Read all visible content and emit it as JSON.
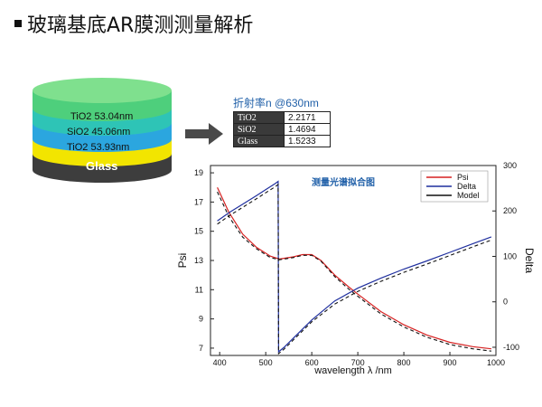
{
  "title": "玻璃基底AR膜测测量解析",
  "stack": {
    "layers": [
      {
        "label": "TiO2  53.04nm",
        "color": "#2ec4b6"
      },
      {
        "label": "SiO2  45.06nm",
        "color": "#2ba6df"
      },
      {
        "label": "TiO2  53.93nm",
        "color": "#f2e500"
      }
    ],
    "top_color": "#5fd37a",
    "substrate": {
      "label": "Glass",
      "color": "#3d3d3d"
    }
  },
  "nk": {
    "title": "折射率n @630nm",
    "rows": [
      {
        "material": "TiO2",
        "value": "2.2171"
      },
      {
        "material": "SiO2",
        "value": "1.4694"
      },
      {
        "material": "Glass",
        "value": "1.5233"
      }
    ]
  },
  "chart_data": {
    "type": "line",
    "title": "测量光谱拟合图",
    "xlabel": "wavelength λ /nm",
    "ylabel": "Psi",
    "y2label": "Delta",
    "xlim": [
      380,
      1000
    ],
    "ylim": [
      6.5,
      19.5
    ],
    "y2lim": [
      -118,
      300
    ],
    "xticks": [
      400,
      500,
      600,
      700,
      800,
      900,
      1000
    ],
    "yticks": [
      7,
      9,
      11,
      13,
      15,
      17,
      19
    ],
    "y2ticks": [
      -100,
      0,
      100,
      200,
      300
    ],
    "legend_position": "top-right",
    "series": [
      {
        "name": "Psi",
        "axis": "left",
        "color": "#d62020",
        "dash": false,
        "x": [
          395,
          420,
          450,
          480,
          510,
          530,
          560,
          580,
          600,
          620,
          650,
          680,
          700,
          750,
          800,
          850,
          900,
          950,
          990
        ],
        "y": [
          18.0,
          16.3,
          14.8,
          13.9,
          13.3,
          13.1,
          13.25,
          13.4,
          13.4,
          13.0,
          12.0,
          11.2,
          10.7,
          9.5,
          8.6,
          7.9,
          7.4,
          7.1,
          6.95
        ]
      },
      {
        "name": "Delta",
        "axis": "right",
        "color": "#1f2f9e",
        "dash": false,
        "x": [
          395,
          420,
          450,
          480,
          500,
          520,
          527,
          528,
          540,
          560,
          600,
          650,
          700,
          750,
          800,
          850,
          900,
          950,
          990
        ],
        "y": [
          178,
          196,
          215,
          234,
          247,
          260,
          265,
          -110,
          -100,
          -80,
          -40,
          2,
          30,
          52,
          72,
          90,
          109,
          128,
          143
        ]
      },
      {
        "name": "Model",
        "axis": "both",
        "color": "#111111",
        "dash": true,
        "x": [
          395,
          420,
          450,
          480,
          510,
          530,
          560,
          580,
          600,
          620,
          650,
          680,
          700,
          750,
          800,
          850,
          900,
          950,
          990
        ],
        "y": [
          17.7,
          16.0,
          14.6,
          13.8,
          13.2,
          13.05,
          13.2,
          13.35,
          13.35,
          12.95,
          11.9,
          11.05,
          10.55,
          9.35,
          8.45,
          7.75,
          7.25,
          6.95,
          6.8
        ]
      }
    ]
  }
}
